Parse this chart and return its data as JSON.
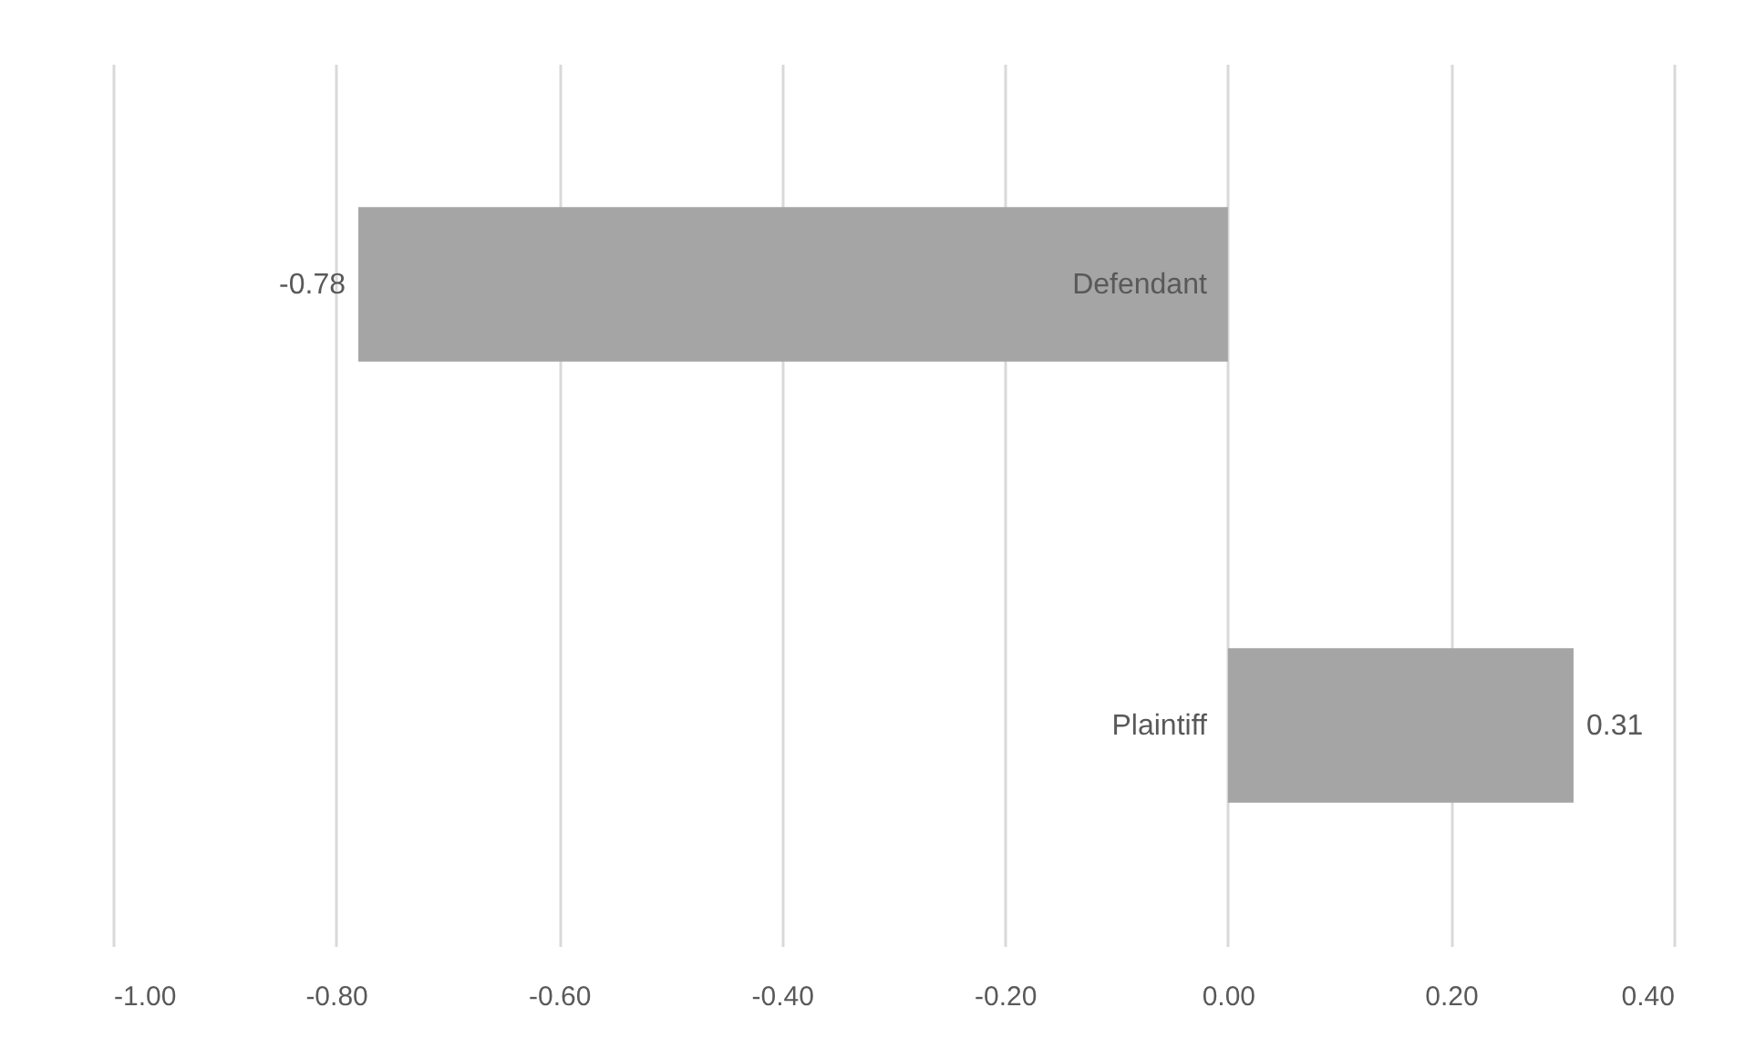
{
  "chart_data": {
    "type": "bar",
    "orientation": "horizontal",
    "categories": [
      "Defendant",
      "Plaintiff"
    ],
    "values": [
      -0.78,
      0.31
    ],
    "color": "#a5a5a5",
    "xlim": [
      -1.0,
      0.4
    ],
    "xticks": [
      {
        "value": -1.0,
        "label": "-1.00"
      },
      {
        "value": -0.8,
        "label": "-0.80"
      },
      {
        "value": -0.6,
        "label": "-0.60"
      },
      {
        "value": -0.4,
        "label": "-0.40"
      },
      {
        "value": -0.2,
        "label": "-0.20"
      },
      {
        "value": 0,
        "label": "0.00"
      },
      {
        "value": 0.2,
        "label": "0.20"
      },
      {
        "value": 0.4,
        "label": "0.40"
      }
    ],
    "grid": "x",
    "data_labels": true
  }
}
